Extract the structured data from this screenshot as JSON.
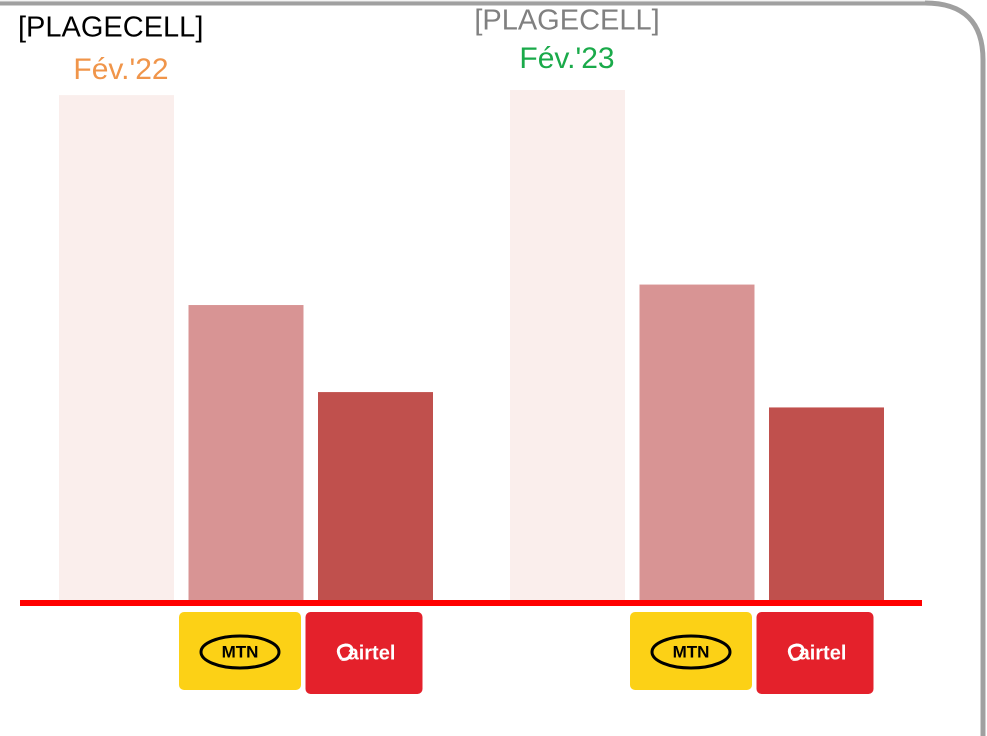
{
  "chart_data": {
    "type": "bar",
    "categories": [
      null,
      "MTN",
      "airtel"
    ],
    "colors": [
      "#faeeec",
      "#d89494",
      "#c0504d"
    ],
    "ylim": [
      0,
      100
    ],
    "groups": [
      {
        "title": "[PLAGECELL]",
        "title_color": "#000000",
        "subtitle": "Fév.'22",
        "subtitle_color": "#f0954a",
        "values": [
          99,
          58,
          41
        ]
      },
      {
        "title": "[PLAGECELL]",
        "title_color": "#808080",
        "subtitle": "Fév.'23",
        "subtitle_color": "#1aaa4a",
        "values": [
          100,
          62,
          38
        ]
      }
    ]
  }
}
